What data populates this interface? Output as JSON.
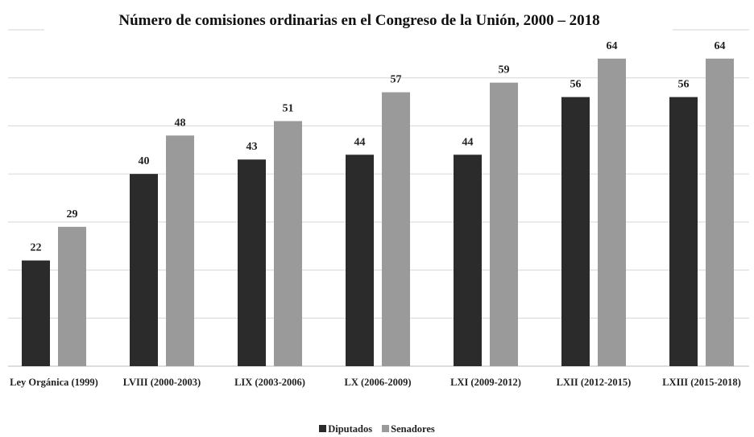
{
  "chart_data": {
    "type": "bar",
    "title": "Número de comisiones ordinarias en el Congreso de la Unión, 2000 – 2018",
    "categories": [
      "Ley Orgánica (1999)",
      "LVIII (2000-2003)",
      "LIX (2003-2006)",
      "LX (2006-2009)",
      "LXI (2009-2012)",
      "LXII (2012-2015)",
      "LXIII (2015-2018)"
    ],
    "series": [
      {
        "name": "Diputados",
        "color": "#2b2b2b",
        "values": [
          22,
          40,
          43,
          44,
          44,
          56,
          56
        ]
      },
      {
        "name": "Senadores",
        "color": "#9a9a9a",
        "values": [
          29,
          48,
          51,
          57,
          59,
          64,
          64
        ]
      }
    ],
    "ylim": [
      0,
      70
    ],
    "yticks": [
      0,
      10,
      20,
      30,
      40,
      50,
      60,
      70
    ],
    "grid": true,
    "legend": "bottom"
  }
}
